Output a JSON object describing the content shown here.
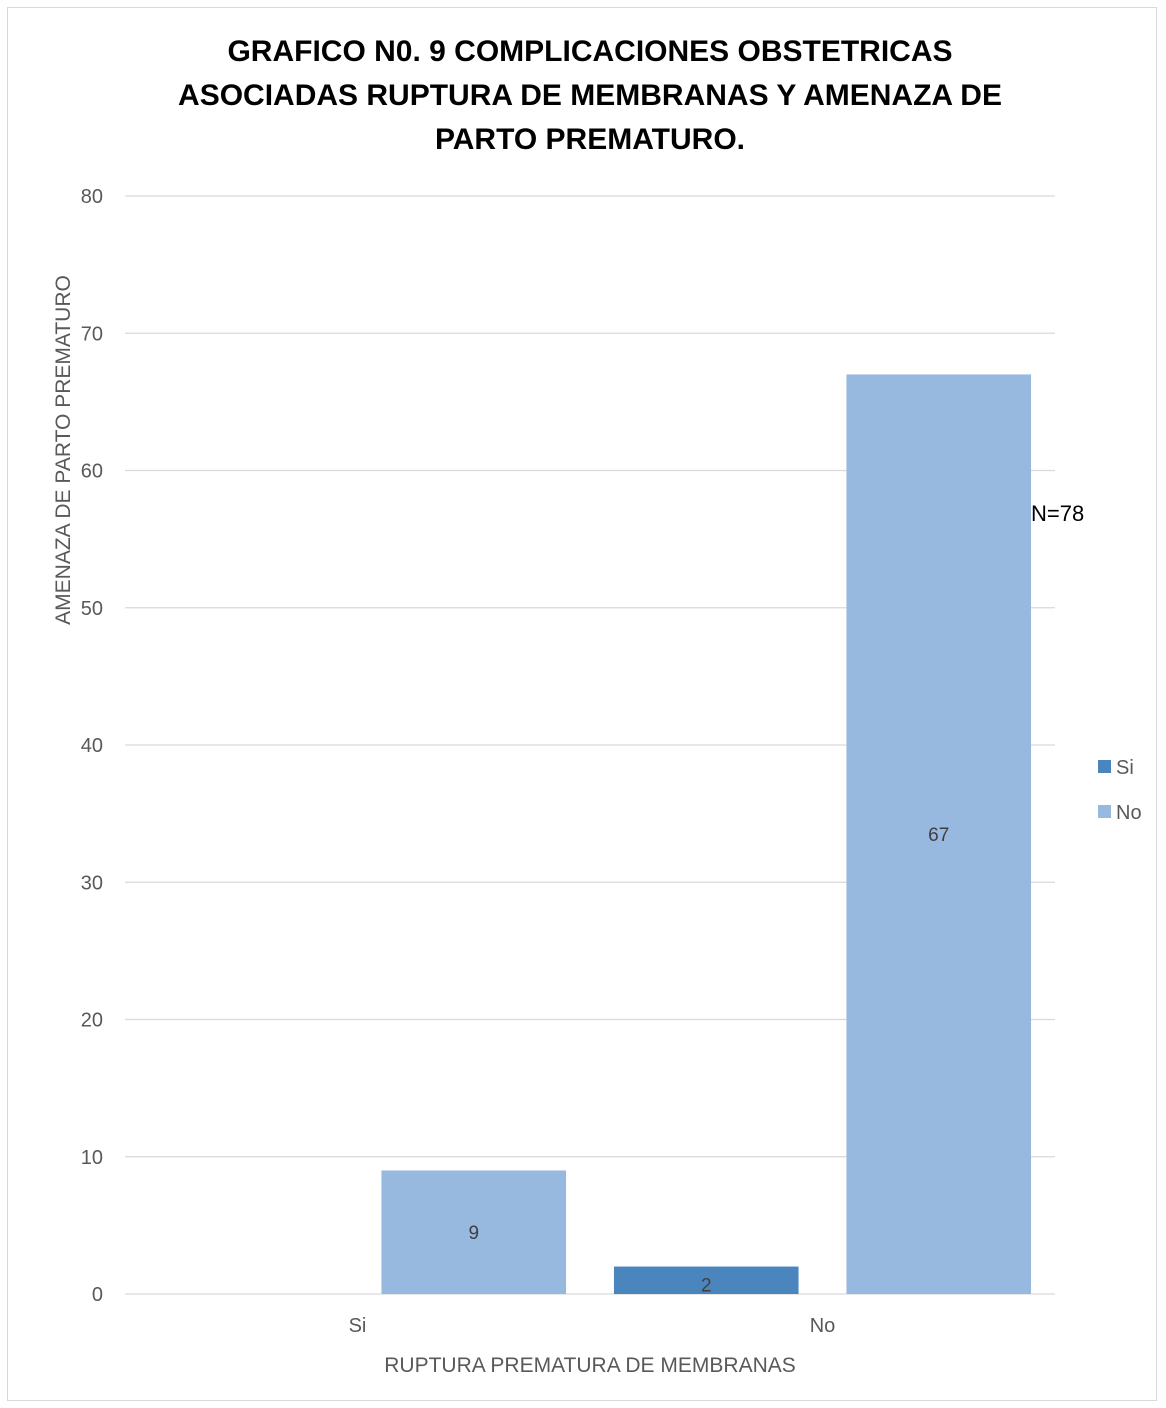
{
  "chart_data": {
    "type": "bar",
    "title_lines": [
      "GRAFICO N0. 9 COMPLICACIONES OBSTETRICAS",
      "ASOCIADAS RUPTURA DE MEMBRANAS Y AMENAZA DE",
      "PARTO PREMATURO."
    ],
    "xlabel": "RUPTURA PREMATURA DE MEMBRANAS",
    "ylabel": "AMENAZA DE PARTO PREMATURO",
    "categories": [
      "Si",
      "No"
    ],
    "ylim": [
      0,
      80
    ],
    "yticks": [
      0,
      10,
      20,
      30,
      40,
      50,
      60,
      70,
      80
    ],
    "grid": true,
    "legend_position": "right",
    "series": [
      {
        "name": "Si",
        "color": "#4a86bd",
        "values": [
          0,
          2
        ],
        "labels": [
          "",
          "2"
        ]
      },
      {
        "name": "No",
        "color": "#98b9df",
        "values": [
          9,
          67
        ],
        "labels": [
          "9",
          "67"
        ]
      }
    ],
    "annotation": "N=78"
  }
}
